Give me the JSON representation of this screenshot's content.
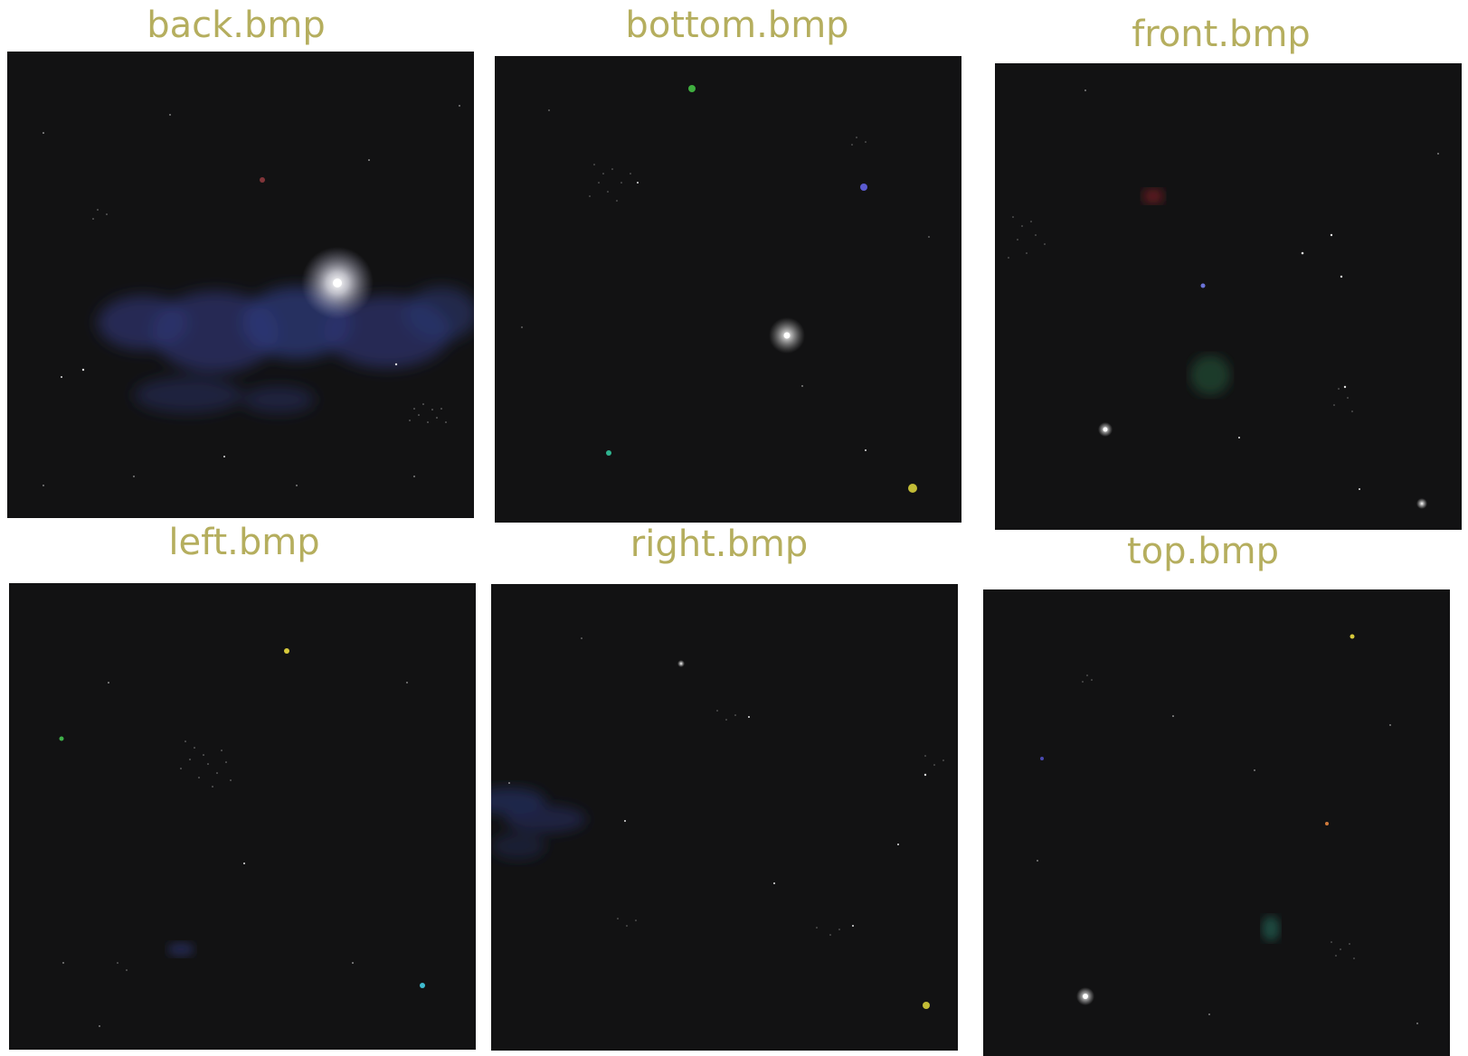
{
  "tiles": [
    {
      "id": "back",
      "label": "back.bmp",
      "features": [
        {
          "kind": "nebula",
          "color": "#2c3570"
        },
        {
          "kind": "bright-star",
          "color": "#ffffff"
        },
        {
          "kind": "star",
          "color": "#b0454a"
        },
        {
          "kind": "cluster",
          "color": "#cfcfcf"
        }
      ]
    },
    {
      "id": "bottom",
      "label": "bottom.bmp",
      "features": [
        {
          "kind": "bright-star",
          "color": "#ffffff"
        },
        {
          "kind": "star",
          "color": "#3fae3f"
        },
        {
          "kind": "star",
          "color": "#5b5bd0"
        },
        {
          "kind": "star",
          "color": "#2fb38f"
        },
        {
          "kind": "star",
          "color": "#d6cf3b"
        },
        {
          "kind": "cluster",
          "color": "#cfcfcf"
        }
      ]
    },
    {
      "id": "front",
      "label": "front.bmp",
      "features": [
        {
          "kind": "nebula",
          "color": "#6a1c22"
        },
        {
          "kind": "nebula",
          "color": "#1c3a2a"
        },
        {
          "kind": "star",
          "color": "#6b73d8"
        },
        {
          "kind": "star",
          "color": "#ffffff"
        },
        {
          "kind": "cluster",
          "color": "#cfcfcf"
        }
      ]
    },
    {
      "id": "left",
      "label": "left.bmp",
      "features": [
        {
          "kind": "star",
          "color": "#d6c93b"
        },
        {
          "kind": "star",
          "color": "#3fb04a"
        },
        {
          "kind": "star",
          "color": "#3fbcd0"
        },
        {
          "kind": "nebula",
          "color": "#232648"
        },
        {
          "kind": "cluster",
          "color": "#cfcfcf"
        }
      ]
    },
    {
      "id": "right",
      "label": "right.bmp",
      "features": [
        {
          "kind": "nebula",
          "color": "#232a55"
        },
        {
          "kind": "star",
          "color": "#d8d8d8"
        },
        {
          "kind": "star",
          "color": "#d6cf3b"
        },
        {
          "kind": "cluster",
          "color": "#cfcfcf"
        }
      ]
    },
    {
      "id": "top",
      "label": "top.bmp",
      "features": [
        {
          "kind": "bright-star",
          "color": "#ffffff"
        },
        {
          "kind": "star",
          "color": "#d6c93b"
        },
        {
          "kind": "star",
          "color": "#d07a3b"
        },
        {
          "kind": "star",
          "color": "#4a4ab0"
        },
        {
          "kind": "nebula",
          "color": "#1b4a40"
        },
        {
          "kind": "cluster",
          "color": "#cfcfcf"
        }
      ]
    }
  ],
  "colors": {
    "label": "#b5ae5e",
    "space": "#121213"
  }
}
